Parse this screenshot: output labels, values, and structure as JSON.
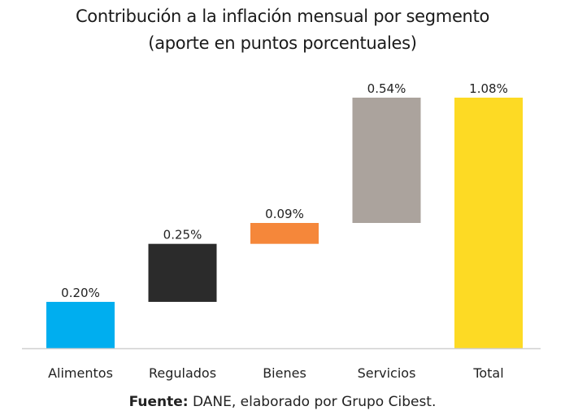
{
  "chart_data": {
    "type": "waterfall",
    "title": "Contribución a la inflación mensual por segmento",
    "subtitle": "(aporte en puntos porcentuales)",
    "categories": [
      "Alimentos",
      "Regulados",
      "Bienes",
      "Servicios",
      "Total"
    ],
    "values": [
      0.2,
      0.25,
      0.09,
      0.54,
      1.08
    ],
    "labels": [
      "0.20%",
      "0.25%",
      "0.09%",
      "0.54%",
      "1.08%"
    ],
    "is_total": [
      false,
      false,
      false,
      false,
      true
    ],
    "colors": [
      "#00AEEF",
      "#2B2B2B",
      "#F5873A",
      "#ABA39D",
      "#FDDA24"
    ],
    "ylim": [
      0,
      1.08
    ],
    "grid": false
  },
  "footer": {
    "bold": "Fuente:",
    "text": " DANE, elaborado por Grupo Cibest."
  }
}
